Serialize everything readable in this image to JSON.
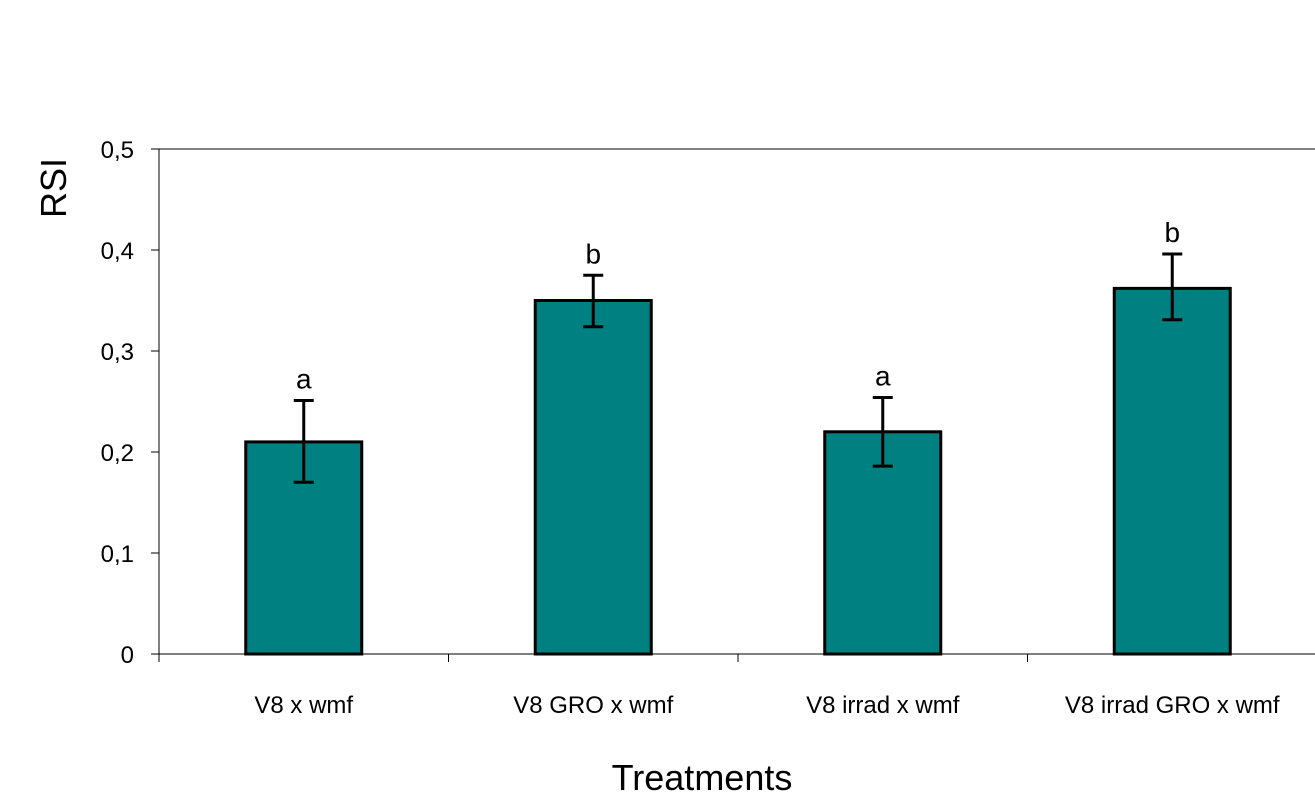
{
  "chart_data": {
    "type": "bar",
    "title": "",
    "xlabel": "Treatments",
    "ylabel": "RSI",
    "ylim": [
      0,
      0.5
    ],
    "yticks": [
      0,
      0.1,
      0.2,
      0.3,
      0.4,
      0.5
    ],
    "ytick_labels": [
      "0",
      "0,1",
      "0,2",
      "0,3",
      "0,4",
      "0,5"
    ],
    "categories": [
      "V8 x wmf",
      "V8 GRO x wmf",
      "V8 irrad x wmf",
      "V8 irrad GRO x wmf"
    ],
    "values": [
      0.21,
      0.35,
      0.22,
      0.362
    ],
    "error_low": [
      0.17,
      0.324,
      0.186,
      0.331
    ],
    "error_high": [
      0.251,
      0.375,
      0.254,
      0.396
    ],
    "significance_letters": [
      "a",
      "b",
      "a",
      "b"
    ],
    "bar_color": "#008080",
    "grid": false,
    "legend": "none"
  }
}
